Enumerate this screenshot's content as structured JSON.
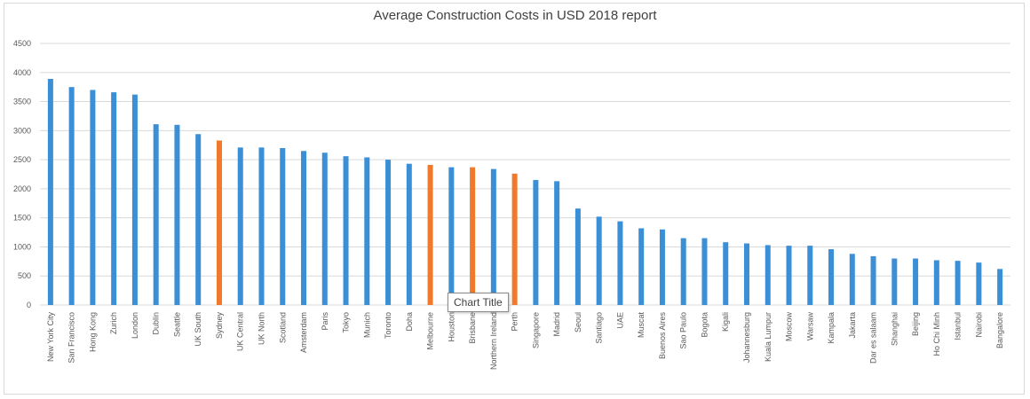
{
  "tooltip": "Chart Title",
  "colors": {
    "default_bar": "#3a8fd6",
    "highlight_bar": "#f07a2b",
    "grid": "#d9d9d9"
  },
  "chart_data": {
    "type": "bar",
    "title": "Average Construction Costs in USD 2018 report",
    "xlabel": "",
    "ylabel": "",
    "ylim": [
      0,
      4500
    ],
    "yticks": [
      0,
      500,
      1000,
      1500,
      2000,
      2500,
      3000,
      3500,
      4000,
      4500
    ],
    "grid": true,
    "legend": "none",
    "categories": [
      "New York City",
      "San Francisco",
      "Hong Kong",
      "Zurich",
      "London",
      "Dublin",
      "Seattle",
      "UK South",
      "Sydney",
      "UK Central",
      "UK North",
      "Scotland",
      "Amsterdam",
      "Paris",
      "Tokyo",
      "Munich",
      "Toronto",
      "Doha",
      "Melbourne",
      "Houston",
      "Brisbane",
      "Northern Ireland",
      "Perth",
      "Singapore",
      "Madrid",
      "Seoul",
      "Santiago",
      "UAE",
      "Muscat",
      "Buenos Aires",
      "Sao Paulo",
      "Bogota",
      "Kigali",
      "Johannesburg",
      "Kuala Lumpur",
      "Moscow",
      "Warsaw",
      "Kampala",
      "Jakarta",
      "Dar es salaam",
      "Shanghai",
      "Beijing",
      "Ho Chi Minh",
      "Istanbul",
      "Nairobi",
      "Bangalore"
    ],
    "values": [
      3890,
      3750,
      3700,
      3660,
      3620,
      3110,
      3100,
      2940,
      2830,
      2710,
      2710,
      2700,
      2650,
      2620,
      2560,
      2540,
      2500,
      2430,
      2410,
      2370,
      2370,
      2340,
      2260,
      2150,
      2130,
      1660,
      1520,
      1440,
      1320,
      1300,
      1150,
      1150,
      1080,
      1060,
      1030,
      1020,
      1020,
      960,
      880,
      840,
      800,
      800,
      770,
      760,
      730,
      620
    ],
    "highlighted": [
      "Sydney",
      "Melbourne",
      "Brisbane",
      "Perth"
    ]
  }
}
